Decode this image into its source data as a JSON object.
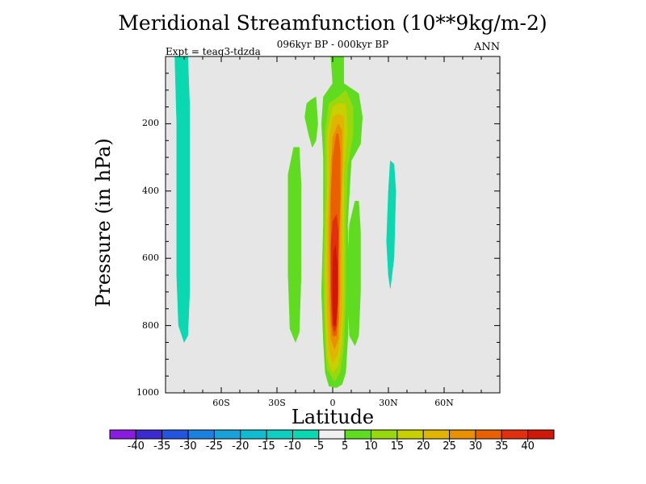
{
  "header": {
    "title": "Meridional Streamfunction (10**9kg/m-2)",
    "subtitle": "096kyr BP - 000kyr BP",
    "left_label": "Expt = teaq3-tdzda",
    "right_label": "ANN"
  },
  "chart_data": {
    "type": "heatmap",
    "title": "Meridional Streamfunction (10**9kg/m-2)",
    "subtitle": "096kyr BP - 000kyr BP",
    "xlabel": "Latitude",
    "ylabel": "Pressure (in hPa)",
    "xlim": [
      -90,
      90
    ],
    "ylim": [
      1000,
      0
    ],
    "x_ticks": [
      {
        "value": -60,
        "label": "60S"
      },
      {
        "value": -30,
        "label": "30S"
      },
      {
        "value": 0,
        "label": "0"
      },
      {
        "value": 30,
        "label": "30N"
      },
      {
        "value": 60,
        "label": "60N"
      }
    ],
    "y_ticks": [
      {
        "value": 200,
        "label": "200"
      },
      {
        "value": 400,
        "label": "400"
      },
      {
        "value": 600,
        "label": "600"
      },
      {
        "value": 800,
        "label": "800"
      },
      {
        "value": 1000,
        "label": "1000"
      }
    ],
    "background_color": "#e6e6e6",
    "colorbar": {
      "labels": [
        "-40",
        "-35",
        "-30",
        "-25",
        "-20",
        "-15",
        "-10",
        "-5",
        "5",
        "10",
        "15",
        "20",
        "25",
        "30",
        "35",
        "40"
      ],
      "colors": [
        "#8a1be0",
        "#3a2ad0",
        "#2355e0",
        "#1c80e0",
        "#18a2d8",
        "#12bcd0",
        "#0fcdc0",
        "#0ad8b0",
        "#f0f0f0",
        "#60dc20",
        "#98d80c",
        "#c8d000",
        "#e0b400",
        "#e89000",
        "#e86000",
        "#e03010",
        "#d01808"
      ]
    },
    "regions": [
      {
        "name": "negative-band-60S",
        "value": -7.5,
        "color": "#0ad8b0",
        "points": [
          [
            -85,
            0
          ],
          [
            -78,
            0
          ],
          [
            -77,
            150
          ],
          [
            -77,
            700
          ],
          [
            -78,
            830
          ],
          [
            -80,
            850
          ],
          [
            -83,
            800
          ],
          [
            -84,
            650
          ],
          [
            -84,
            200
          ],
          [
            -85,
            0
          ]
        ]
      },
      {
        "name": "negative-blob-30N",
        "value": -7.5,
        "color": "#0ad8b0",
        "points": [
          [
            31,
            310
          ],
          [
            33,
            320
          ],
          [
            34,
            400
          ],
          [
            33,
            600
          ],
          [
            31,
            690
          ],
          [
            30,
            650
          ],
          [
            29,
            550
          ],
          [
            30,
            400
          ],
          [
            31,
            310
          ]
        ]
      },
      {
        "name": "positive-band-20S",
        "value": 7.5,
        "color": "#60dc20",
        "points": [
          [
            -21,
            270
          ],
          [
            -18,
            270
          ],
          [
            -17,
            380
          ],
          [
            -17,
            650
          ],
          [
            -18,
            820
          ],
          [
            -20,
            850
          ],
          [
            -23,
            810
          ],
          [
            -24,
            650
          ],
          [
            -24,
            350
          ],
          [
            -21,
            270
          ]
        ]
      },
      {
        "name": "positive-blob-upper-10S",
        "value": 7.5,
        "color": "#60dc20",
        "points": [
          [
            -12,
            130
          ],
          [
            -9,
            120
          ],
          [
            -8,
            200
          ],
          [
            -9,
            250
          ],
          [
            -11,
            270
          ],
          [
            -13,
            230
          ],
          [
            -15,
            180
          ],
          [
            -14,
            140
          ],
          [
            -12,
            130
          ]
        ]
      },
      {
        "name": "positive-blob-12N",
        "value": 7.5,
        "color": "#60dc20",
        "points": [
          [
            12,
            430
          ],
          [
            14,
            430
          ],
          [
            15,
            520
          ],
          [
            15,
            700
          ],
          [
            14,
            830
          ],
          [
            12,
            860
          ],
          [
            9,
            830
          ],
          [
            8,
            650
          ],
          [
            9,
            500
          ],
          [
            12,
            430
          ]
        ]
      },
      {
        "name": "core-level-5",
        "value": 7.5,
        "color": "#60dc20",
        "points": [
          [
            0,
            0
          ],
          [
            6,
            0
          ],
          [
            6,
            80
          ],
          [
            14,
            110
          ],
          [
            16,
            180
          ],
          [
            15,
            260
          ],
          [
            10,
            310
          ],
          [
            8,
            500
          ],
          [
            9,
            700
          ],
          [
            8,
            850
          ],
          [
            7,
            940
          ],
          [
            5,
            975
          ],
          [
            2,
            985
          ],
          [
            -2,
            980
          ],
          [
            -4,
            940
          ],
          [
            -5,
            850
          ],
          [
            -6,
            700
          ],
          [
            -5,
            500
          ],
          [
            -5,
            300
          ],
          [
            -6,
            200
          ],
          [
            -5,
            120
          ],
          [
            0,
            80
          ],
          [
            -1,
            0
          ],
          [
            0,
            0
          ]
        ]
      },
      {
        "name": "core-level-10",
        "value": 12.5,
        "color": "#98d80c",
        "points": [
          [
            3,
            120
          ],
          [
            7,
            100
          ],
          [
            11,
            150
          ],
          [
            11,
            230
          ],
          [
            8,
            330
          ],
          [
            7,
            500
          ],
          [
            7,
            700
          ],
          [
            6,
            860
          ],
          [
            4,
            940
          ],
          [
            1,
            965
          ],
          [
            -3,
            930
          ],
          [
            -4,
            840
          ],
          [
            -5,
            650
          ],
          [
            -4,
            400
          ],
          [
            -4,
            220
          ],
          [
            -2,
            140
          ],
          [
            3,
            120
          ]
        ]
      },
      {
        "name": "core-level-15",
        "value": 17.5,
        "color": "#c8d000",
        "points": [
          [
            3,
            140
          ],
          [
            7,
            140
          ],
          [
            8,
            220
          ],
          [
            6,
            340
          ],
          [
            6,
            500
          ],
          [
            6,
            700
          ],
          [
            5,
            850
          ],
          [
            3,
            920
          ],
          [
            0,
            940
          ],
          [
            -3,
            900
          ],
          [
            -4,
            780
          ],
          [
            -4,
            600
          ],
          [
            -3,
            400
          ],
          [
            -3,
            230
          ],
          [
            0,
            150
          ],
          [
            3,
            140
          ]
        ]
      },
      {
        "name": "core-level-20",
        "value": 22.5,
        "color": "#e0b400",
        "points": [
          [
            3,
            170
          ],
          [
            6,
            180
          ],
          [
            6,
            260
          ],
          [
            5,
            400
          ],
          [
            5,
            600
          ],
          [
            5,
            760
          ],
          [
            3,
            880
          ],
          [
            0,
            910
          ],
          [
            -2,
            870
          ],
          [
            -3,
            760
          ],
          [
            -3,
            560
          ],
          [
            -2,
            380
          ],
          [
            -2,
            250
          ],
          [
            0,
            180
          ],
          [
            3,
            170
          ]
        ]
      },
      {
        "name": "core-level-25",
        "value": 27.5,
        "color": "#e89000",
        "points": [
          [
            3,
            200
          ],
          [
            5,
            220
          ],
          [
            5,
            330
          ],
          [
            4,
            500
          ],
          [
            4,
            700
          ],
          [
            3,
            840
          ],
          [
            1,
            870
          ],
          [
            -1,
            840
          ],
          [
            -2,
            720
          ],
          [
            -2,
            520
          ],
          [
            -1,
            340
          ],
          [
            0,
            240
          ],
          [
            3,
            200
          ]
        ]
      },
      {
        "name": "core-level-30",
        "value": 32.5,
        "color": "#e86000",
        "points": [
          [
            3,
            230
          ],
          [
            4,
            280
          ],
          [
            4,
            420
          ],
          [
            3,
            600
          ],
          [
            3,
            780
          ],
          [
            2,
            830
          ],
          [
            0,
            830
          ],
          [
            -1,
            780
          ],
          [
            -1,
            600
          ],
          [
            -1,
            420
          ],
          [
            0,
            300
          ],
          [
            2,
            230
          ],
          [
            3,
            230
          ]
        ]
      },
      {
        "name": "core-level-35",
        "value": 37.5,
        "color": "#e03010",
        "points": [
          [
            2,
            470
          ],
          [
            3,
            520
          ],
          [
            3,
            700
          ],
          [
            2,
            800
          ],
          [
            1,
            820
          ],
          [
            0,
            800
          ],
          [
            -1,
            700
          ],
          [
            -1,
            560
          ],
          [
            0,
            490
          ],
          [
            2,
            470
          ]
        ]
      },
      {
        "name": "core-level-40",
        "value": 42.5,
        "color": "#d01808",
        "points": [
          [
            1.5,
            560
          ],
          [
            2.5,
            620
          ],
          [
            2.5,
            740
          ],
          [
            1.5,
            800
          ],
          [
            0.5,
            800
          ],
          [
            0,
            740
          ],
          [
            0,
            640
          ],
          [
            0.5,
            580
          ],
          [
            1.5,
            560
          ]
        ]
      }
    ]
  }
}
